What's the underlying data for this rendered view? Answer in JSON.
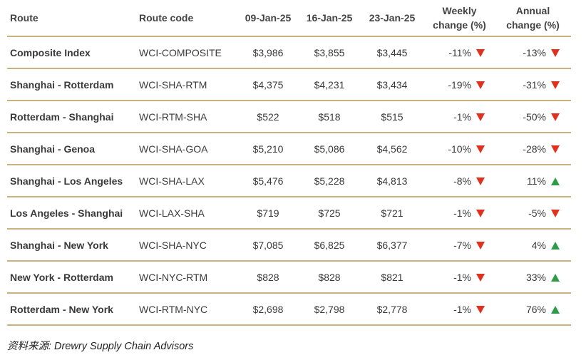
{
  "headers": {
    "route": "Route",
    "route_code": "Route code",
    "date1": "09-Jan-25",
    "date2": "16-Jan-25",
    "date3": "23-Jan-25",
    "weekly_line1": "Weekly",
    "weekly_line2": "change (%)",
    "annual_line1": "Annual",
    "annual_line2": "change (%)"
  },
  "rows": [
    {
      "route": "Composite Index",
      "code": "WCI-COMPOSITE",
      "d1": "$3,986",
      "d2": "$3,855",
      "d3": "$3,445",
      "weekly": "-11%",
      "weekly_dir": "down",
      "annual": "-13%",
      "annual_dir": "down"
    },
    {
      "route": "Shanghai - Rotterdam",
      "code": "WCI-SHA-RTM",
      "d1": "$4,375",
      "d2": "$4,231",
      "d3": "$3,434",
      "weekly": "-19%",
      "weekly_dir": "down",
      "annual": "-31%",
      "annual_dir": "down"
    },
    {
      "route": "Rotterdam - Shanghai",
      "code": "WCI-RTM-SHA",
      "d1": "$522",
      "d2": "$518",
      "d3": "$515",
      "weekly": "-1%",
      "weekly_dir": "down",
      "annual": "-50%",
      "annual_dir": "down"
    },
    {
      "route": "Shanghai - Genoa",
      "code": "WCI-SHA-GOA",
      "d1": "$5,210",
      "d2": "$5,086",
      "d3": "$4,562",
      "weekly": "-10%",
      "weekly_dir": "down",
      "annual": "-28%",
      "annual_dir": "down"
    },
    {
      "route": "Shanghai - Los Angeles",
      "code": "WCI-SHA-LAX",
      "d1": "$5,476",
      "d2": "$5,228",
      "d3": "$4,813",
      "weekly": "-8%",
      "weekly_dir": "down",
      "annual": "11%",
      "annual_dir": "up"
    },
    {
      "route": "Los Angeles - Shanghai",
      "code": "WCI-LAX-SHA",
      "d1": "$719",
      "d2": "$725",
      "d3": "$721",
      "weekly": "-1%",
      "weekly_dir": "down",
      "annual": "-5%",
      "annual_dir": "down"
    },
    {
      "route": "Shanghai - New York",
      "code": "WCI-SHA-NYC",
      "d1": "$7,085",
      "d2": "$6,825",
      "d3": "$6,377",
      "weekly": "-7%",
      "weekly_dir": "down",
      "annual": "4%",
      "annual_dir": "up"
    },
    {
      "route": "New York - Rotterdam",
      "code": "WCI-NYC-RTM",
      "d1": "$828",
      "d2": "$828",
      "d3": "$821",
      "weekly": "-1%",
      "weekly_dir": "down",
      "annual": "33%",
      "annual_dir": "up"
    },
    {
      "route": "Rotterdam - New York",
      "code": "WCI-RTM-NYC",
      "d1": "$2,698",
      "d2": "$2,798",
      "d3": "$2,778",
      "weekly": "-1%",
      "weekly_dir": "down",
      "annual": "76%",
      "annual_dir": "up"
    }
  ],
  "source": "资料来源: Drewry Supply Chain Advisors",
  "colors": {
    "rule": "#c9b27c",
    "down_arrow": "#e0301e",
    "up_arrow": "#2e9b48"
  }
}
